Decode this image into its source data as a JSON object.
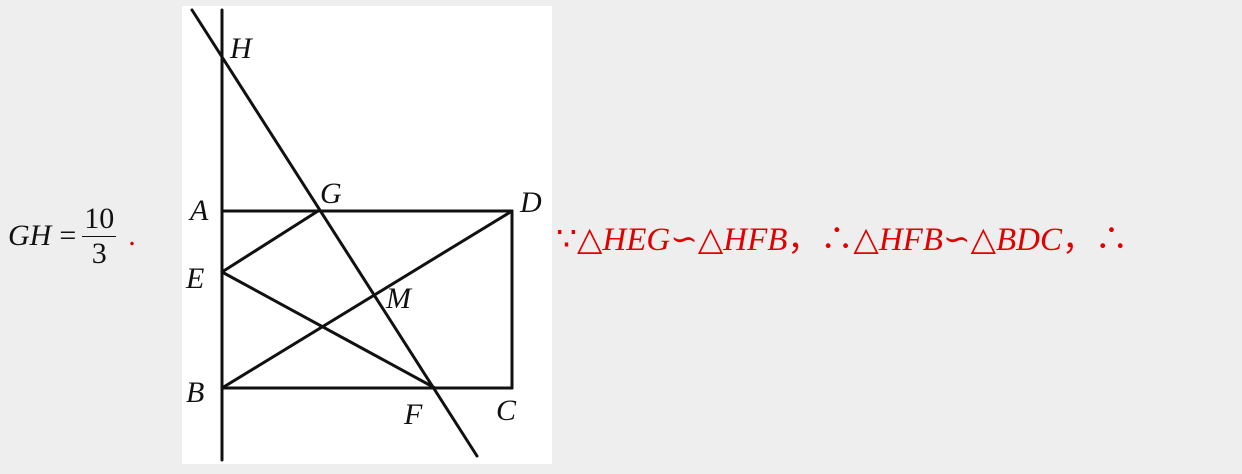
{
  "formula": {
    "lhs": "GH",
    "eq": "=",
    "numerator": "10",
    "denominator": "3",
    "end": "."
  },
  "figure": {
    "points": {
      "H": "H",
      "A": "A",
      "G": "G",
      "D": "D",
      "E": "E",
      "M": "M",
      "B": "B",
      "F": "F",
      "C": "C"
    }
  },
  "reasoning": {
    "because": "∵",
    "tri": "△",
    "t1": "HEG",
    "similar": "∽",
    "t2": "HFB",
    "comma": "，",
    "therefore": "∴",
    "t3": "HFB",
    "t4": "BDC",
    "comma2": "，",
    "therefore2": "∴"
  }
}
